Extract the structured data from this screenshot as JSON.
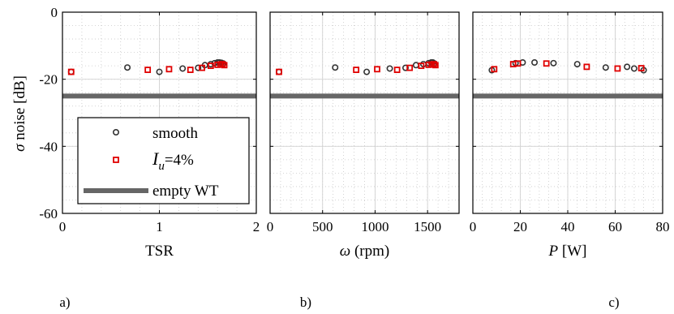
{
  "ylabel_sigma": "σ",
  "ylabel_rest": " noise [dB]",
  "legend": {
    "smooth": "smooth",
    "iu_i": "I",
    "iu_sub": "u",
    "iu_rest": "=4%",
    "empty": "empty WT"
  },
  "colors": {
    "smooth": "#333333",
    "iu": "#e00000",
    "empty": "#666666",
    "grid": "#c8c8c8"
  },
  "chart_data": [
    {
      "type": "scatter",
      "panel": "a)",
      "xlabel": "TSR",
      "xlabel_italic": false,
      "xlabel_unit": "",
      "xlim": [
        0,
        2
      ],
      "ylim": [
        -60,
        0
      ],
      "xticks": [
        "0",
        "1",
        "2"
      ],
      "yticks": [
        "0",
        "-20",
        "-40",
        "-60"
      ],
      "empty_wt": -25,
      "series": [
        {
          "name": "smooth",
          "x": [
            0.09,
            0.67,
            1.0,
            1.24,
            1.4,
            1.47,
            1.53,
            1.57,
            1.6,
            1.62,
            1.64,
            1.66
          ],
          "y": [
            -17.8,
            -16.5,
            -17.8,
            -16.8,
            -16.6,
            -15.8,
            -15.5,
            -15.2,
            -15.0,
            -15.0,
            -15.1,
            -15.3
          ]
        },
        {
          "name": "Iu=4%",
          "x": [
            0.09,
            0.88,
            1.1,
            1.32,
            1.44,
            1.53,
            1.6,
            1.63,
            1.65,
            1.67
          ],
          "y": [
            -17.8,
            -17.2,
            -17.0,
            -17.2,
            -16.6,
            -16.0,
            -15.7,
            -15.6,
            -15.5,
            -15.8
          ]
        }
      ]
    },
    {
      "type": "scatter",
      "panel": "b)",
      "xlabel": "ω",
      "xlabel_italic": true,
      "xlabel_unit": " (rpm)",
      "xlim": [
        0,
        1800
      ],
      "ylim": [
        -60,
        0
      ],
      "xticks": [
        "0",
        "500",
        "1000",
        "1500"
      ],
      "yticks": [],
      "empty_wt": -25,
      "series": [
        {
          "name": "smooth",
          "x": [
            85,
            620,
            920,
            1140,
            1290,
            1390,
            1460,
            1510,
            1535,
            1550,
            1565
          ],
          "y": [
            -17.8,
            -16.5,
            -17.8,
            -16.8,
            -16.6,
            -15.8,
            -15.5,
            -15.2,
            -15.0,
            -15.0,
            -15.3
          ]
        },
        {
          "name": "Iu=4%",
          "x": [
            85,
            820,
            1020,
            1210,
            1330,
            1440,
            1510,
            1540,
            1560,
            1575
          ],
          "y": [
            -17.8,
            -17.2,
            -17.0,
            -17.2,
            -16.6,
            -16.0,
            -15.7,
            -15.6,
            -15.5,
            -15.8
          ]
        }
      ]
    },
    {
      "type": "scatter",
      "panel": "c)",
      "xlabel": "P",
      "xlabel_italic": true,
      "xlabel_unit": " [W]",
      "xlim": [
        0,
        80
      ],
      "ylim": [
        -60,
        0
      ],
      "xticks": [
        "0",
        "20",
        "40",
        "60",
        "80"
      ],
      "yticks": [],
      "empty_wt": -25,
      "series": [
        {
          "name": "smooth",
          "x": [
            8,
            18,
            21,
            26,
            34,
            44,
            56,
            65,
            68,
            72
          ],
          "y": [
            -17.3,
            -15.2,
            -15.0,
            -15.0,
            -15.2,
            -15.5,
            -16.5,
            -16.3,
            -16.8,
            -17.3
          ]
        },
        {
          "name": "Iu=4%",
          "x": [
            9,
            17,
            19,
            31,
            48,
            61,
            71
          ],
          "y": [
            -17.0,
            -15.5,
            -15.3,
            -15.3,
            -16.3,
            -16.8,
            -16.7
          ]
        }
      ]
    }
  ]
}
